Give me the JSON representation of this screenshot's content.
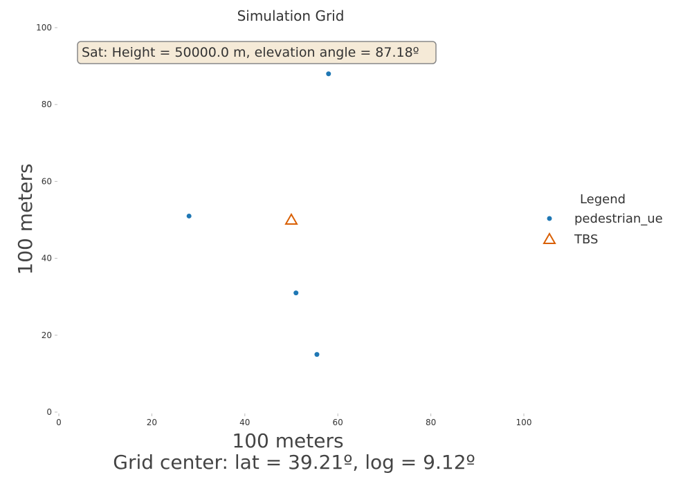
{
  "chart_data": {
    "type": "scatter",
    "title": "Simulation Grid",
    "xlabel": "100 meters",
    "ylabel": "100 meters",
    "caption": "Grid center: lat = 39.21º, log = 9.12º",
    "annotation": "Sat: Height = 50000.0 m, elevation angle = 87.18º",
    "xlim": [
      0,
      100
    ],
    "ylim": [
      0,
      100
    ],
    "xticks": [
      0,
      20,
      40,
      60,
      80,
      100
    ],
    "yticks": [
      0,
      20,
      40,
      60,
      80,
      100
    ],
    "xtick_labels": [
      "0",
      "20",
      "40",
      "60",
      "80",
      "100"
    ],
    "ytick_labels": [
      "0",
      "20",
      "40",
      "60",
      "80",
      "100"
    ],
    "grid": false,
    "legend": {
      "title": "Legend",
      "placement": "right"
    },
    "series": [
      {
        "name": "pedestrian_ue",
        "marker": "circle",
        "color": "#1f77b4",
        "points": [
          [
            28.0,
            51.0
          ],
          [
            58.0,
            88.0
          ],
          [
            51.0,
            31.0
          ],
          [
            55.5,
            15.0
          ]
        ]
      },
      {
        "name": "TBS",
        "marker": "triangle",
        "color": "#d95f02",
        "points": [
          [
            50.0,
            50.0
          ]
        ]
      }
    ]
  }
}
